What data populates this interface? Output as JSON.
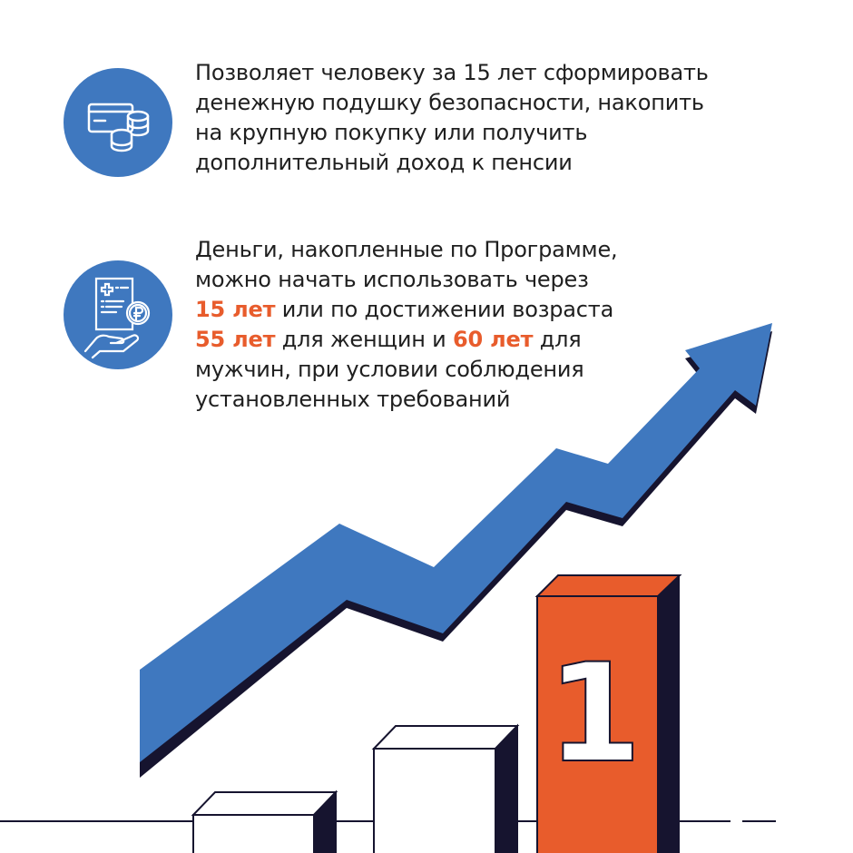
{
  "colors": {
    "blue": "#3f78bf",
    "orange": "#e85c2c",
    "navy": "#16142f",
    "text": "#1f1f1f"
  },
  "items": [
    {
      "icon": "card-coins-icon",
      "lines": [
        "Позволяет человеку за 15 лет сформировать",
        "денежную подушку безопасности, накопить",
        "на крупную покупку или получить",
        "дополнительный доход к пенсии"
      ]
    },
    {
      "icon": "document-ruble-hand-icon",
      "line1": "Деньги, накопленные по Программе,",
      "line2": "можно начать использовать через",
      "line3_hl": "15 лет",
      "line3_rest": " или по достижении возраста",
      "line4_hl1": "55 лет",
      "line4_mid": " для женщин и ",
      "line4_hl2": "60 лет",
      "line4_rest": " для",
      "line5": "мужчин, при условии соблюдения",
      "line6": "установленных требований"
    }
  ],
  "illustration": {
    "bar_label": "1"
  }
}
